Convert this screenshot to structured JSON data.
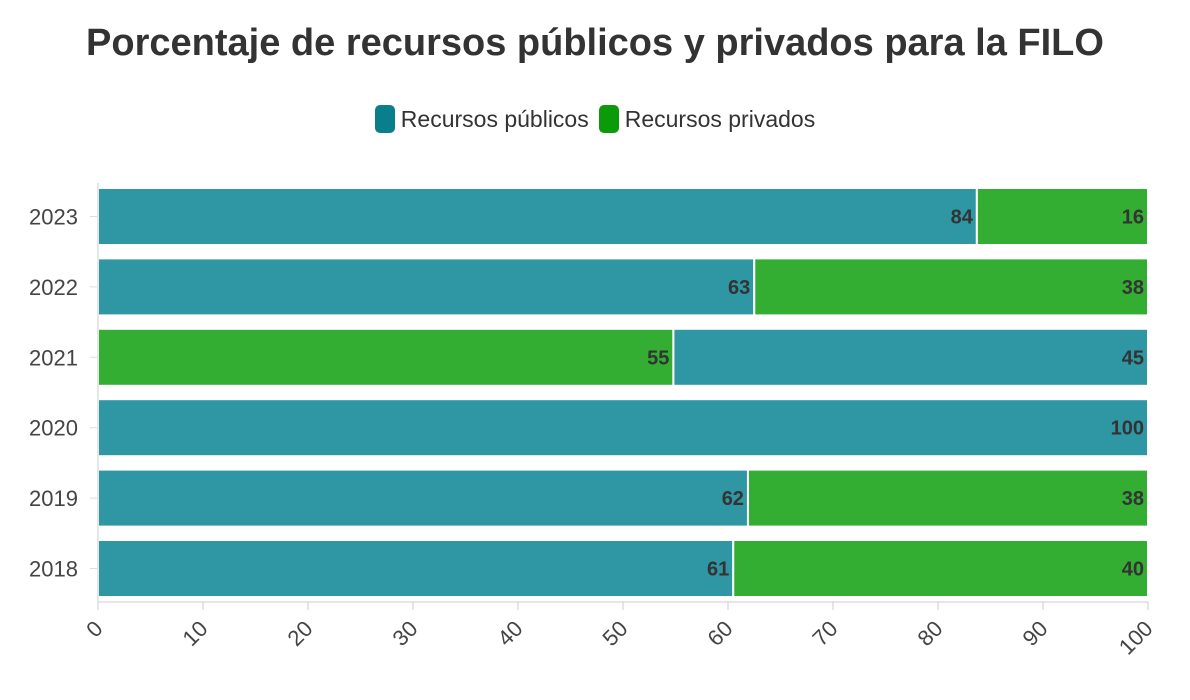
{
  "chart_data": {
    "type": "bar",
    "orientation": "horizontal",
    "stacked": true,
    "title": "Porcentaje de recursos públicos y privados para la FILO",
    "xlim": [
      0,
      100
    ],
    "x_ticks": [
      0,
      10,
      20,
      30,
      40,
      50,
      60,
      70,
      80,
      90,
      100
    ],
    "categories": [
      "2023",
      "2022",
      "2021",
      "2020",
      "2019",
      "2018"
    ],
    "legend_position": "top-center",
    "grid": false,
    "series": [
      {
        "name": "Recursos públicos",
        "color": "#2f96a3",
        "legend_color": "#0a7f8c"
      },
      {
        "name": "Recursos privados",
        "color": "#33ae33",
        "legend_color": "#0a9a0a"
      }
    ],
    "rows": [
      {
        "category": "2023",
        "segments": [
          {
            "series": 0,
            "value": 83.7,
            "label": "84"
          },
          {
            "series": 1,
            "value": 16.3,
            "label": "16"
          }
        ]
      },
      {
        "category": "2022",
        "segments": [
          {
            "series": 0,
            "value": 62.5,
            "label": "63"
          },
          {
            "series": 1,
            "value": 37.5,
            "label": "38"
          }
        ]
      },
      {
        "category": "2021",
        "segments": [
          {
            "series": 1,
            "value": 54.8,
            "label": "55"
          },
          {
            "series": 0,
            "value": 45.2,
            "label": "45"
          }
        ]
      },
      {
        "category": "2020",
        "segments": [
          {
            "series": 0,
            "value": 100,
            "label": "100"
          }
        ]
      },
      {
        "category": "2019",
        "segments": [
          {
            "series": 0,
            "value": 61.9,
            "label": "62"
          },
          {
            "series": 1,
            "value": 38.1,
            "label": "38"
          }
        ]
      },
      {
        "category": "2018",
        "segments": [
          {
            "series": 0,
            "value": 60.5,
            "label": "61"
          },
          {
            "series": 1,
            "value": 39.5,
            "label": "40"
          }
        ]
      }
    ]
  }
}
